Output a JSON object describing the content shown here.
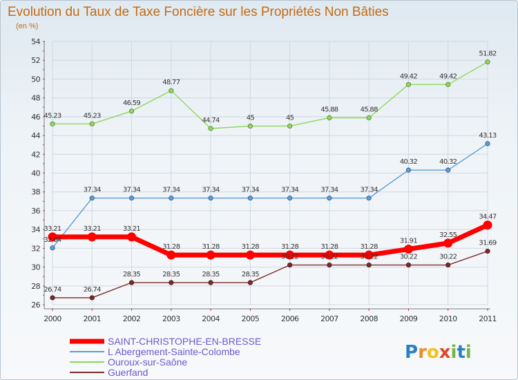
{
  "chart_data": {
    "type": "line",
    "title": "Evolution du Taux de Taxe Foncière sur les Propriétés Non Bâties",
    "subtitle": "(en %)",
    "x": [
      "2000",
      "2001",
      "2002",
      "2003",
      "2004",
      "2005",
      "2006",
      "2007",
      "2008",
      "2009",
      "2010",
      "2011"
    ],
    "ylim": [
      26,
      54
    ],
    "yticks": [
      26,
      28,
      30,
      32,
      34,
      36,
      38,
      40,
      42,
      44,
      46,
      48,
      50,
      52,
      54
    ],
    "grid": true,
    "legend_position": "bottom-left",
    "series": [
      {
        "name": "SAINT-CHRISTOPHE-EN-BRESSE",
        "color": "#ff0000",
        "values": [
          33.21,
          33.21,
          33.21,
          31.28,
          31.28,
          31.28,
          31.28,
          31.28,
          31.28,
          31.91,
          32.55,
          34.47
        ],
        "labels": [
          "33.21",
          "33.21",
          "33.21",
          "31.28",
          "31.28",
          "31.28",
          "31.28",
          "31.28",
          "31.28",
          "31.91",
          "32.55",
          "34.47"
        ]
      },
      {
        "name": "L Abergement-Sainte-Colombe",
        "color": "#5b9bd5",
        "values": [
          32.04,
          37.34,
          37.34,
          37.34,
          37.34,
          37.34,
          37.34,
          37.34,
          37.34,
          40.32,
          40.32,
          43.13
        ],
        "labels": [
          "32.04",
          "37.34",
          "37.34",
          "37.34",
          "37.34",
          "37.34",
          "37.34",
          "37.34",
          "37.34",
          "40.32",
          "40.32",
          "43.13"
        ]
      },
      {
        "name": "Ouroux-sur-Saône",
        "color": "#8ed65a",
        "values": [
          45.23,
          45.23,
          46.59,
          48.77,
          44.74,
          45,
          45,
          45.88,
          45.88,
          49.42,
          49.42,
          51.82
        ],
        "labels": [
          "45.23",
          "45.23",
          "46.59",
          "48.77",
          "44.74",
          "45",
          "45",
          "45.88",
          "45.88",
          "49.42",
          "49.42",
          "51.82"
        ]
      },
      {
        "name": "Guerfand",
        "color": "#7b2929",
        "values": [
          26.74,
          26.74,
          28.35,
          28.35,
          28.35,
          28.35,
          30.22,
          30.22,
          30.22,
          30.22,
          30.22,
          31.69
        ],
        "labels": [
          "26.74",
          "26.74",
          "28.35",
          "28.35",
          "28.35",
          "28.35",
          "30.22",
          "30.22",
          "30.22",
          "30.22",
          "30.22",
          "31.69"
        ]
      }
    ]
  },
  "logo": {
    "text": "Proxiti",
    "letters": [
      "P",
      "r",
      "o",
      "x",
      "i",
      "t",
      "i"
    ]
  }
}
